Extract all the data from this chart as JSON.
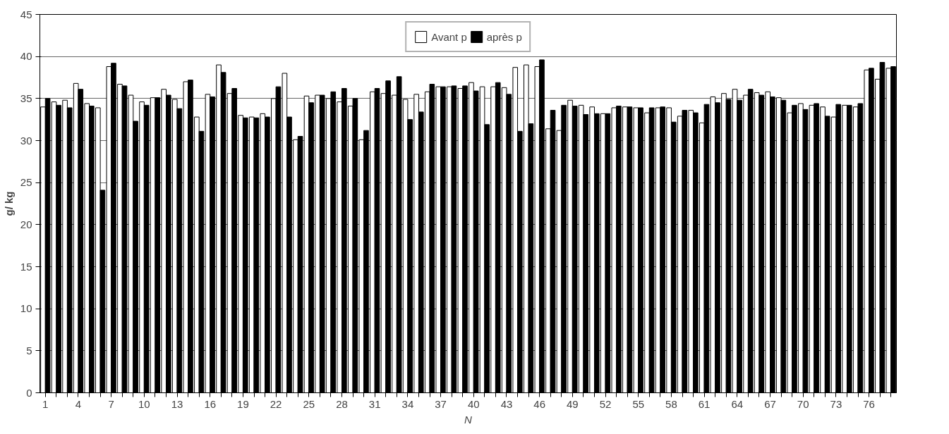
{
  "chart_data": {
    "type": "bar",
    "xlabel": "N",
    "ylabel": "g/ kg",
    "categories": [
      "1",
      null,
      null,
      "4",
      null,
      null,
      "7",
      null,
      null,
      "10",
      null,
      null,
      "13",
      null,
      null,
      "16",
      null,
      null,
      "19",
      null,
      null,
      "22",
      null,
      null,
      "25",
      null,
      null,
      "28",
      null,
      null,
      "31",
      null,
      null,
      "34",
      null,
      null,
      "37",
      null,
      null,
      "40",
      null,
      null,
      "43",
      null,
      null,
      "46",
      null,
      null,
      "49",
      null,
      null,
      "52",
      null,
      null,
      "55",
      null,
      null,
      "58",
      null,
      null,
      "61",
      null,
      null,
      "64",
      null,
      null,
      "67",
      null,
      null,
      "70",
      null,
      null,
      "73",
      null,
      null,
      "76",
      null,
      null
    ],
    "series": [
      {
        "name": "Avant p",
        "color": "#ffffff",
        "values": [
          34,
          34.6,
          34.8,
          36.8,
          34.4,
          33.9,
          38.8,
          36.7,
          35.4,
          34.6,
          35.1,
          36.1,
          34.9,
          37,
          32.8,
          35.5,
          39,
          35.6,
          33,
          32.8,
          33.2,
          35,
          38,
          30.1,
          35.3,
          35.4,
          35,
          34.6,
          34.1,
          30.1,
          35.8,
          35.6,
          35.4,
          34.9,
          35.5,
          35.8,
          36.4,
          36.4,
          36.2,
          36.9,
          36.4,
          36.4,
          36.3,
          38.7,
          39,
          38.8,
          31.4,
          31.2,
          34.8,
          34.2,
          34,
          33.2,
          33.9,
          34,
          33.9,
          33.3,
          33.9,
          33.9,
          32.9,
          33.6,
          32.1,
          35.2,
          35.6,
          36.1,
          35.4,
          35.7,
          35.8,
          35.1,
          33.3,
          34.4,
          34.2,
          34,
          32.8,
          34.2,
          34,
          38.4,
          37.3,
          38.6
        ]
      },
      {
        "name": "après p",
        "color": "#000000",
        "values": [
          35,
          34.2,
          33.9,
          36.1,
          34.1,
          24.1,
          39.2,
          36.5,
          32.3,
          34.2,
          35.1,
          35.4,
          33.8,
          37.2,
          31.1,
          35.2,
          38.1,
          36.2,
          32.7,
          32.7,
          32.8,
          36.4,
          32.8,
          30.5,
          34.5,
          35.4,
          35.8,
          36.2,
          35,
          31.2,
          36.2,
          37.1,
          37.6,
          32.5,
          33.4,
          36.7,
          36.4,
          36.5,
          36.5,
          35.9,
          31.9,
          36.9,
          35.5,
          31.1,
          32,
          39.6,
          33.6,
          34.2,
          34.1,
          33.1,
          33.2,
          33.2,
          34.1,
          34,
          33.9,
          33.9,
          34,
          32.2,
          33.6,
          33.3,
          34.3,
          34.5,
          34.9,
          34.8,
          36.1,
          35.4,
          35.2,
          34.8,
          34.2,
          33.7,
          34.4,
          32.9,
          34.3,
          34.2,
          34.4,
          38.6,
          39.3,
          38.8
        ]
      }
    ],
    "ylim": [
      0,
      45
    ],
    "yticks": [
      0,
      5,
      10,
      15,
      20,
      25,
      30,
      35,
      40,
      45
    ],
    "grid": "y",
    "legend": "top"
  }
}
